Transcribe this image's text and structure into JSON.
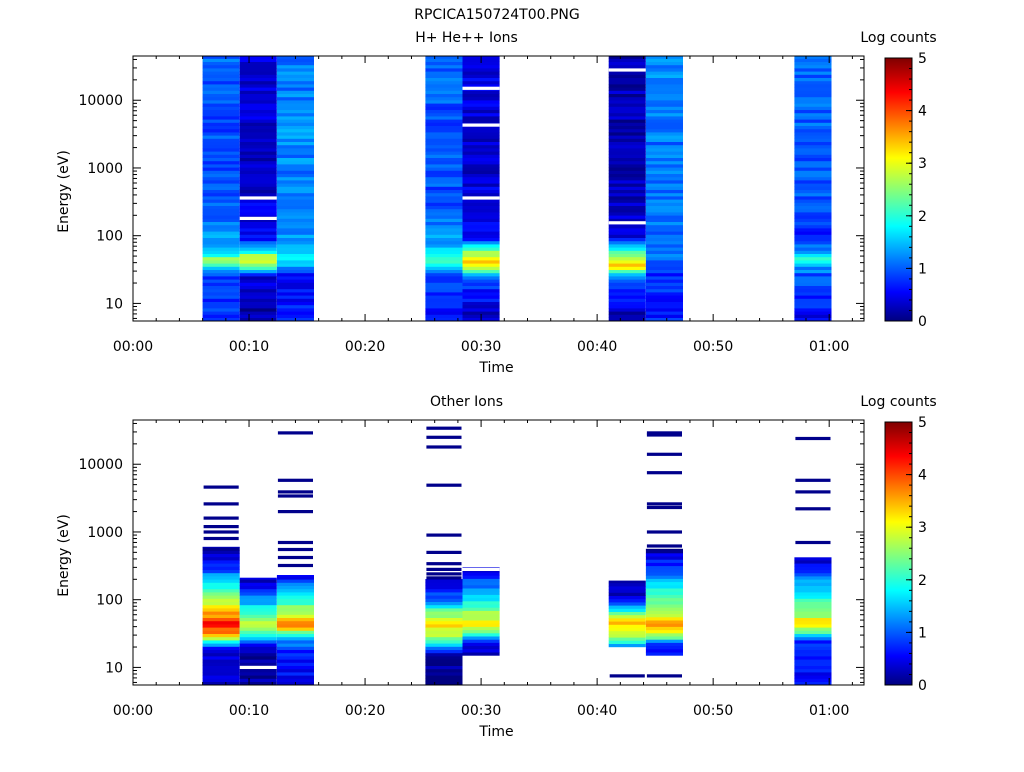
{
  "page_title": "RPCICA150724T00.PNG",
  "chart_data": [
    {
      "type": "heatmap",
      "title": "H+ He++ Ions",
      "xlabel": "Time",
      "ylabel": "Energy (eV)",
      "x_ticks": [
        "00:00",
        "00:10",
        "00:20",
        "00:30",
        "00:40",
        "00:50",
        "01:00"
      ],
      "x_range_minutes": [
        0,
        63
      ],
      "y_scale": "log",
      "y_ticks": [
        "10",
        "100",
        "1000",
        "10000"
      ],
      "y_range": [
        5.5,
        45000
      ],
      "colorbar": {
        "label": "Log counts",
        "range": [
          0,
          5
        ],
        "ticks": [
          "0",
          "1",
          "2",
          "3",
          "4",
          "5"
        ],
        "colormap": "jet"
      },
      "columns": [
        {
          "t_start_min": 6.0,
          "t_end_min": 9.2,
          "e_min": 5.5,
          "e_max": 45000,
          "profile": [
            {
              "e": 6,
              "v": 0.8
            },
            {
              "e": 25,
              "v": 0.9
            },
            {
              "e": 35,
              "v": 1.9
            },
            {
              "e": 45,
              "v": 2.6
            },
            {
              "e": 60,
              "v": 1.5
            },
            {
              "e": 300,
              "v": 1.0
            },
            {
              "e": 3000,
              "v": 1.0
            },
            {
              "e": 40000,
              "v": 1.1
            }
          ],
          "gaps": []
        },
        {
          "t_start_min": 9.2,
          "t_end_min": 12.4,
          "e_min": 5.5,
          "e_max": 45000,
          "profile": [
            {
              "e": 6,
              "v": 0.2
            },
            {
              "e": 25,
              "v": 0.4
            },
            {
              "e": 35,
              "v": 2.3
            },
            {
              "e": 45,
              "v": 3.1
            },
            {
              "e": 60,
              "v": 1.9
            },
            {
              "e": 90,
              "v": 0.6
            },
            {
              "e": 1000,
              "v": 0.3
            },
            {
              "e": 40000,
              "v": 0.5
            }
          ],
          "gaps": [
            180,
            360
          ]
        },
        {
          "t_start_min": 12.4,
          "t_end_min": 15.6,
          "e_min": 5.5,
          "e_max": 45000,
          "profile": [
            {
              "e": 6,
              "v": 0.8
            },
            {
              "e": 25,
              "v": 0.5
            },
            {
              "e": 35,
              "v": 1.4
            },
            {
              "e": 45,
              "v": 1.9
            },
            {
              "e": 60,
              "v": 1.5
            },
            {
              "e": 300,
              "v": 1.2
            },
            {
              "e": 3000,
              "v": 1.3
            },
            {
              "e": 40000,
              "v": 1.2
            }
          ],
          "gaps": []
        },
        {
          "t_start_min": 25.2,
          "t_end_min": 28.4,
          "e_min": 5.5,
          "e_max": 45000,
          "profile": [
            {
              "e": 6,
              "v": 0.6
            },
            {
              "e": 25,
              "v": 1.0
            },
            {
              "e": 35,
              "v": 1.8
            },
            {
              "e": 45,
              "v": 2.4
            },
            {
              "e": 60,
              "v": 1.6
            },
            {
              "e": 300,
              "v": 1.0
            },
            {
              "e": 3000,
              "v": 1.0
            },
            {
              "e": 40000,
              "v": 1.1
            }
          ],
          "gaps": []
        },
        {
          "t_start_min": 28.4,
          "t_end_min": 31.6,
          "e_min": 5.5,
          "e_max": 45000,
          "profile": [
            {
              "e": 6,
              "v": 0.3
            },
            {
              "e": 25,
              "v": 1.0
            },
            {
              "e": 35,
              "v": 3.2
            },
            {
              "e": 45,
              "v": 3.4
            },
            {
              "e": 60,
              "v": 2.4
            },
            {
              "e": 90,
              "v": 0.7
            },
            {
              "e": 1000,
              "v": 0.4
            },
            {
              "e": 40000,
              "v": 0.5
            }
          ],
          "gaps": [
            360,
            4300,
            15000
          ]
        },
        {
          "t_start_min": 41.0,
          "t_end_min": 44.2,
          "e_min": 5.5,
          "e_max": 45000,
          "profile": [
            {
              "e": 6,
              "v": 0.2
            },
            {
              "e": 25,
              "v": 1.2
            },
            {
              "e": 35,
              "v": 3.3
            },
            {
              "e": 45,
              "v": 2.9
            },
            {
              "e": 60,
              "v": 2.0
            },
            {
              "e": 90,
              "v": 0.5
            },
            {
              "e": 1000,
              "v": 0.2
            },
            {
              "e": 40000,
              "v": 0.3
            }
          ],
          "gaps": [
            155,
            28000
          ]
        },
        {
          "t_start_min": 44.2,
          "t_end_min": 47.4,
          "e_min": 5.5,
          "e_max": 45000,
          "profile": [
            {
              "e": 6,
              "v": 0.8
            },
            {
              "e": 25,
              "v": 0.8
            },
            {
              "e": 45,
              "v": 1.1
            },
            {
              "e": 60,
              "v": 1.2
            },
            {
              "e": 300,
              "v": 1.2
            },
            {
              "e": 3000,
              "v": 1.2
            },
            {
              "e": 40000,
              "v": 1.3
            }
          ],
          "gaps": []
        },
        {
          "t_start_min": 57.0,
          "t_end_min": 60.2,
          "e_min": 5.5,
          "e_max": 45000,
          "profile": [
            {
              "e": 6,
              "v": 0.6
            },
            {
              "e": 25,
              "v": 1.0
            },
            {
              "e": 35,
              "v": 1.4
            },
            {
              "e": 45,
              "v": 2.0
            },
            {
              "e": 60,
              "v": 1.3
            },
            {
              "e": 90,
              "v": 0.7
            },
            {
              "e": 300,
              "v": 1.0
            },
            {
              "e": 3000,
              "v": 1.1
            },
            {
              "e": 40000,
              "v": 1.1
            }
          ],
          "gaps": []
        }
      ]
    },
    {
      "type": "heatmap",
      "title": "Other Ions",
      "xlabel": "Time",
      "ylabel": "Energy (eV)",
      "x_ticks": [
        "00:00",
        "00:10",
        "00:20",
        "00:30",
        "00:40",
        "00:50",
        "01:00"
      ],
      "x_range_minutes": [
        0,
        63
      ],
      "y_scale": "log",
      "y_ticks": [
        "10",
        "100",
        "1000",
        "10000"
      ],
      "y_range": [
        5.5,
        45000
      ],
      "colorbar": {
        "label": "Log counts",
        "range": [
          0,
          5
        ],
        "ticks": [
          "0",
          "1",
          "2",
          "3",
          "4",
          "5"
        ],
        "colormap": "jet"
      },
      "columns": [
        {
          "t_start_min": 6.0,
          "t_end_min": 9.2,
          "e_min": 5.5,
          "e_max": 600,
          "profile": [
            {
              "e": 6,
              "v": 0.2
            },
            {
              "e": 10,
              "v": 0.6
            },
            {
              "e": 18,
              "v": 0.3
            },
            {
              "e": 30,
              "v": 3.4
            },
            {
              "e": 45,
              "v": 4.5
            },
            {
              "e": 60,
              "v": 3.6
            },
            {
              "e": 100,
              "v": 2.6
            },
            {
              "e": 200,
              "v": 1.5
            },
            {
              "e": 400,
              "v": 0.6
            },
            {
              "e": 600,
              "v": 0.2
            }
          ],
          "lines": [
            4600,
            2600,
            1600,
            1200,
            1000,
            800
          ]
        },
        {
          "t_start_min": 9.2,
          "t_end_min": 12.4,
          "e_min": 5.5,
          "e_max": 210,
          "profile": [
            {
              "e": 6,
              "v": 0.2
            },
            {
              "e": 14,
              "v": 0.2
            },
            {
              "e": 22,
              "v": 0.6
            },
            {
              "e": 30,
              "v": 2.2
            },
            {
              "e": 45,
              "v": 2.9
            },
            {
              "e": 70,
              "v": 2.0
            },
            {
              "e": 120,
              "v": 1.0
            },
            {
              "e": 210,
              "v": 0.3
            }
          ],
          "gaps": [
            10
          ]
        },
        {
          "t_start_min": 12.4,
          "t_end_min": 15.6,
          "e_min": 5.5,
          "e_max": 230,
          "profile": [
            {
              "e": 6,
              "v": 0.6
            },
            {
              "e": 18,
              "v": 0.8
            },
            {
              "e": 28,
              "v": 1.6
            },
            {
              "e": 40,
              "v": 3.8
            },
            {
              "e": 55,
              "v": 3.2
            },
            {
              "e": 90,
              "v": 2.2
            },
            {
              "e": 230,
              "v": 0.6
            }
          ],
          "lines": [
            29000,
            5800,
            3900,
            3400,
            2000,
            700,
            550,
            420,
            320
          ]
        },
        {
          "t_start_min": 25.2,
          "t_end_min": 28.4,
          "e_min": 5.5,
          "e_max": 200,
          "profile": [
            {
              "e": 6,
              "v": 0.1
            },
            {
              "e": 15,
              "v": 0.3
            },
            {
              "e": 30,
              "v": 2.8
            },
            {
              "e": 45,
              "v": 3.4
            },
            {
              "e": 60,
              "v": 2.6
            },
            {
              "e": 110,
              "v": 1.0
            },
            {
              "e": 200,
              "v": 0.3
            }
          ],
          "lines": [
            34000,
            25000,
            18000,
            4900,
            900,
            500,
            340,
            280,
            240,
            210
          ]
        },
        {
          "t_start_min": 28.4,
          "t_end_min": 31.6,
          "e_min": 15,
          "e_max": 300,
          "profile": [
            {
              "e": 15,
              "v": 0.2
            },
            {
              "e": 22,
              "v": 0.5
            },
            {
              "e": 30,
              "v": 2.0
            },
            {
              "e": 40,
              "v": 3.2
            },
            {
              "e": 55,
              "v": 2.8
            },
            {
              "e": 90,
              "v": 2.0
            },
            {
              "e": 160,
              "v": 1.2
            },
            {
              "e": 300,
              "v": 0.5
            }
          ],
          "gaps": [
            280
          ]
        },
        {
          "t_start_min": 41.0,
          "t_end_min": 44.2,
          "e_min": 20,
          "e_max": 190,
          "profile": [
            {
              "e": 20,
              "v": 1.3
            },
            {
              "e": 26,
              "v": 2.2
            },
            {
              "e": 35,
              "v": 3.2
            },
            {
              "e": 45,
              "v": 3.4
            },
            {
              "e": 65,
              "v": 2.2
            },
            {
              "e": 100,
              "v": 0.5
            },
            {
              "e": 190,
              "v": 0.2
            }
          ],
          "lines": [
            7.5
          ]
        },
        {
          "t_start_min": 44.2,
          "t_end_min": 47.4,
          "e_min": 15,
          "e_max": 560,
          "profile": [
            {
              "e": 15,
              "v": 0.5
            },
            {
              "e": 22,
              "v": 1.0
            },
            {
              "e": 30,
              "v": 2.8
            },
            {
              "e": 45,
              "v": 3.6
            },
            {
              "e": 60,
              "v": 3.0
            },
            {
              "e": 120,
              "v": 2.2
            },
            {
              "e": 250,
              "v": 1.2
            },
            {
              "e": 560,
              "v": 0.2
            }
          ],
          "lines": [
            29000,
            27000,
            14000,
            7500,
            2600,
            2300,
            1000,
            620,
            7.5
          ]
        },
        {
          "t_start_min": 57.0,
          "t_end_min": 60.2,
          "e_min": 5.5,
          "e_max": 420,
          "profile": [
            {
              "e": 6,
              "v": 0.6
            },
            {
              "e": 15,
              "v": 0.6
            },
            {
              "e": 25,
              "v": 0.9
            },
            {
              "e": 35,
              "v": 2.6
            },
            {
              "e": 45,
              "v": 3.4
            },
            {
              "e": 60,
              "v": 2.6
            },
            {
              "e": 120,
              "v": 1.8
            },
            {
              "e": 250,
              "v": 1.0
            },
            {
              "e": 420,
              "v": 0.3
            }
          ],
          "lines": [
            24000,
            5800,
            3900,
            2200,
            700
          ]
        }
      ]
    }
  ]
}
